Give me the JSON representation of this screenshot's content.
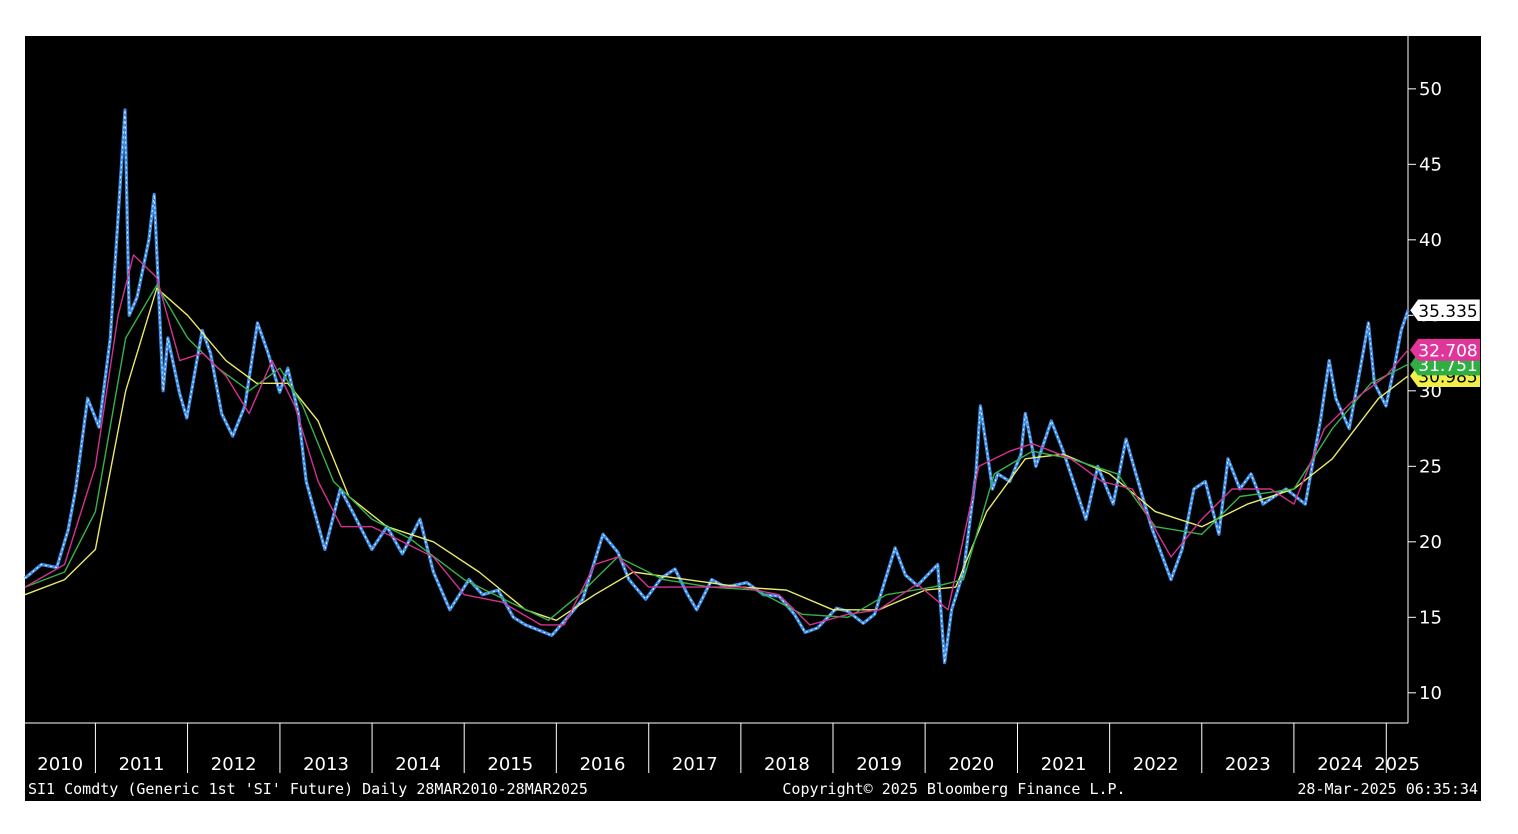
{
  "colors": {
    "background": "#000000",
    "price": "#3d8ee6",
    "price_highlight": "#ffffff",
    "ma_short": "#d2328f",
    "ma_medium": "#35b34a",
    "ma_long": "#e9e96a",
    "axis_text": "#ffffff",
    "label_last": "#ffffff",
    "label_ma_short": "#e0359a",
    "label_ma_medium": "#2fae43",
    "label_ma_long": "#f2ef4b"
  },
  "footer": {
    "left": "SI1 Comdty (Generic 1st 'SI' Future)  Daily 28MAR2010-28MAR2025",
    "center": "Copyright© 2025 Bloomberg Finance L.P.",
    "right": "28-Mar-2025 06:35:34"
  },
  "chart_data": {
    "type": "line",
    "title": "",
    "xlabel": "",
    "ylabel": "",
    "x_range": [
      "2010-03-28",
      "2025-03-28"
    ],
    "ylim": [
      8,
      53.5
    ],
    "y_ticks": [
      10,
      15,
      20,
      25,
      30,
      35,
      40,
      45,
      50
    ],
    "x_tick_labels": [
      "2010",
      "2011",
      "2012",
      "2013",
      "2014",
      "2015",
      "2016",
      "2017",
      "2018",
      "2019",
      "2020",
      "2021",
      "2022",
      "2023",
      "2024",
      "2025"
    ],
    "grid": false,
    "value_labels": [
      {
        "value": 35.335,
        "text": "35.335",
        "series": "last"
      },
      {
        "value": 32.708,
        "text": "32.708",
        "series": "ma_short"
      },
      {
        "value": 31.751,
        "text": "31.751",
        "series": "ma_medium"
      },
      {
        "value": 30.985,
        "text": "30.985",
        "series": "ma_long"
      }
    ],
    "series": [
      {
        "key": "price",
        "x": [
          "2010-03-28",
          "2010-06-01",
          "2010-08-01",
          "2010-09-15",
          "2010-10-15",
          "2010-12-01",
          "2011-01-15",
          "2011-03-01",
          "2011-04-28",
          "2011-05-15",
          "2011-06-15",
          "2011-08-01",
          "2011-08-22",
          "2011-09-26",
          "2011-10-15",
          "2011-12-01",
          "2011-12-29",
          "2012-02-28",
          "2012-04-01",
          "2012-05-15",
          "2012-06-28",
          "2012-08-15",
          "2012-10-04",
          "2012-11-15",
          "2012-12-31",
          "2013-02-01",
          "2013-03-15",
          "2013-04-15",
          "2013-06-28",
          "2013-08-28",
          "2013-10-15",
          "2013-12-31",
          "2014-03-01",
          "2014-05-01",
          "2014-07-10",
          "2014-09-01",
          "2014-11-05",
          "2015-01-20",
          "2015-03-15",
          "2015-05-15",
          "2015-07-15",
          "2015-09-01",
          "2015-12-14",
          "2016-02-15",
          "2016-04-15",
          "2016-07-04",
          "2016-09-01",
          "2016-10-15",
          "2016-12-20",
          "2017-02-20",
          "2017-04-15",
          "2017-06-01",
          "2017-07-10",
          "2017-09-08",
          "2017-11-01",
          "2018-01-25",
          "2018-04-01",
          "2018-06-01",
          "2018-08-01",
          "2018-09-13",
          "2018-11-01",
          "2019-01-15",
          "2019-03-01",
          "2019-05-01",
          "2019-06-15",
          "2019-09-04",
          "2019-10-15",
          "2019-12-01",
          "2020-02-20",
          "2020-03-18",
          "2020-04-15",
          "2020-06-01",
          "2020-07-20",
          "2020-08-07",
          "2020-09-24",
          "2020-10-15",
          "2020-12-01",
          "2021-01-15",
          "2021-02-01",
          "2021-03-15",
          "2021-05-15",
          "2021-07-01",
          "2021-09-29",
          "2021-11-15",
          "2022-01-15",
          "2022-03-07",
          "2022-04-15",
          "2022-06-15",
          "2022-09-01",
          "2022-10-15",
          "2022-12-01",
          "2023-01-15",
          "2023-03-10",
          "2023-04-15",
          "2023-06-01",
          "2023-07-15",
          "2023-09-01",
          "2023-10-15",
          "2023-12-01",
          "2024-02-15",
          "2024-04-15",
          "2024-05-20",
          "2024-06-15",
          "2024-08-07",
          "2024-09-15",
          "2024-10-22",
          "2024-11-15",
          "2024-12-31",
          "2025-02-01",
          "2025-03-01",
          "2025-03-28"
        ],
        "values": [
          17.6,
          18.5,
          18.3,
          20.8,
          23.5,
          29.5,
          27.6,
          33.5,
          48.6,
          35.0,
          36.2,
          40.0,
          43.0,
          30.0,
          33.5,
          29.8,
          28.2,
          34.0,
          32.5,
          28.5,
          27.0,
          29.0,
          34.5,
          32.5,
          29.9,
          31.5,
          28.5,
          24.0,
          19.5,
          23.5,
          22.0,
          19.5,
          21.0,
          19.2,
          21.5,
          18.0,
          15.5,
          17.5,
          16.5,
          16.8,
          15.0,
          14.5,
          13.8,
          15.0,
          16.2,
          20.5,
          19.3,
          17.5,
          16.2,
          17.6,
          18.2,
          16.6,
          15.5,
          17.5,
          17.0,
          17.3,
          16.5,
          16.4,
          15.2,
          14.0,
          14.3,
          15.6,
          15.4,
          14.6,
          15.2,
          19.6,
          17.8,
          17.1,
          18.5,
          12.0,
          15.5,
          18.0,
          24.5,
          29.0,
          23.5,
          24.5,
          24.0,
          25.8,
          28.5,
          25.0,
          28.0,
          26.0,
          21.5,
          25.0,
          22.5,
          26.8,
          24.5,
          21.0,
          17.5,
          19.5,
          23.5,
          24.0,
          20.5,
          25.5,
          23.5,
          24.5,
          22.5,
          23.0,
          23.5,
          22.5,
          28.0,
          32.0,
          29.5,
          27.5,
          31.0,
          34.5,
          30.5,
          29.0,
          31.5,
          34.0,
          35.335
        ]
      },
      {
        "key": "ma_short",
        "x": [
          "2010-03-28",
          "2010-09-01",
          "2011-01-01",
          "2011-04-01",
          "2011-06-01",
          "2011-09-01",
          "2011-12-01",
          "2012-03-01",
          "2012-06-01",
          "2012-09-01",
          "2012-12-01",
          "2013-03-01",
          "2013-06-01",
          "2013-09-01",
          "2014-01-01",
          "2014-05-01",
          "2014-09-01",
          "2015-01-01",
          "2015-06-01",
          "2015-11-01",
          "2016-02-01",
          "2016-06-01",
          "2016-09-01",
          "2017-01-01",
          "2017-06-01",
          "2018-01-01",
          "2018-06-01",
          "2018-10-01",
          "2019-03-01",
          "2019-07-01",
          "2019-12-01",
          "2020-04-01",
          "2020-08-01",
          "2020-12-01",
          "2021-03-01",
          "2021-08-01",
          "2021-12-01",
          "2022-04-01",
          "2022-09-01",
          "2023-01-01",
          "2023-05-01",
          "2023-10-01",
          "2024-01-01",
          "2024-05-01",
          "2024-09-01",
          "2025-01-01",
          "2025-03-28"
        ],
        "values": [
          17.0,
          18.5,
          25.0,
          35.0,
          39.0,
          37.5,
          32.0,
          32.5,
          31.0,
          28.5,
          32.0,
          29.0,
          24.0,
          21.0,
          21.0,
          20.0,
          19.0,
          16.5,
          16.0,
          14.5,
          14.5,
          18.5,
          19.0,
          17.0,
          17.0,
          17.0,
          16.5,
          14.5,
          15.2,
          15.5,
          17.2,
          15.5,
          25.0,
          26.0,
          26.5,
          25.5,
          24.0,
          23.5,
          19.0,
          21.5,
          23.5,
          23.5,
          22.5,
          27.5,
          29.5,
          31.0,
          32.708
        ]
      },
      {
        "key": "ma_medium",
        "x": [
          "2010-03-28",
          "2010-09-01",
          "2011-01-01",
          "2011-05-01",
          "2011-09-01",
          "2012-01-01",
          "2012-05-01",
          "2012-09-01",
          "2013-01-01",
          "2013-04-01",
          "2013-08-01",
          "2014-01-01",
          "2014-06-01",
          "2015-01-01",
          "2015-07-01",
          "2015-12-01",
          "2016-04-01",
          "2016-09-01",
          "2017-03-01",
          "2017-09-01",
          "2018-03-01",
          "2018-09-01",
          "2019-03-01",
          "2019-08-01",
          "2020-02-01",
          "2020-06-01",
          "2020-10-01",
          "2021-03-01",
          "2021-08-01",
          "2022-02-01",
          "2022-07-01",
          "2023-01-01",
          "2023-06-01",
          "2024-01-01",
          "2024-06-01",
          "2024-11-01",
          "2025-03-28"
        ],
        "values": [
          17.0,
          18.0,
          22.0,
          33.5,
          37.0,
          33.5,
          31.5,
          30.0,
          31.5,
          29.0,
          24.0,
          21.5,
          20.2,
          17.5,
          16.0,
          14.8,
          16.5,
          19.0,
          17.5,
          17.0,
          16.8,
          15.2,
          15.0,
          16.5,
          17.0,
          17.5,
          24.5,
          26.0,
          25.5,
          24.5,
          21.0,
          20.5,
          23.0,
          23.5,
          27.5,
          30.5,
          31.751
        ]
      },
      {
        "key": "ma_long",
        "x": [
          "2010-03-28",
          "2010-09-01",
          "2011-01-01",
          "2011-05-01",
          "2011-09-01",
          "2012-01-01",
          "2012-06-01",
          "2012-10-01",
          "2013-02-01",
          "2013-06-01",
          "2013-10-01",
          "2014-03-01",
          "2014-09-01",
          "2015-03-01",
          "2015-09-01",
          "2016-01-01",
          "2016-06-01",
          "2016-11-01",
          "2017-06-01",
          "2018-01-01",
          "2018-07-01",
          "2019-01-01",
          "2019-07-01",
          "2020-01-01",
          "2020-05-01",
          "2020-09-01",
          "2021-02-01",
          "2021-07-01",
          "2022-01-01",
          "2022-07-01",
          "2023-01-01",
          "2023-07-01",
          "2024-01-01",
          "2024-06-01",
          "2024-12-01",
          "2025-03-28"
        ],
        "values": [
          16.5,
          17.5,
          19.5,
          30.0,
          36.8,
          35.0,
          32.0,
          30.5,
          30.5,
          28.0,
          23.0,
          21.0,
          20.0,
          18.0,
          15.5,
          14.8,
          16.5,
          18.0,
          17.5,
          17.0,
          16.8,
          15.5,
          15.5,
          16.8,
          17.0,
          22.0,
          25.5,
          25.8,
          24.5,
          22.0,
          21.0,
          22.5,
          23.5,
          25.5,
          29.5,
          30.985
        ]
      }
    ]
  }
}
